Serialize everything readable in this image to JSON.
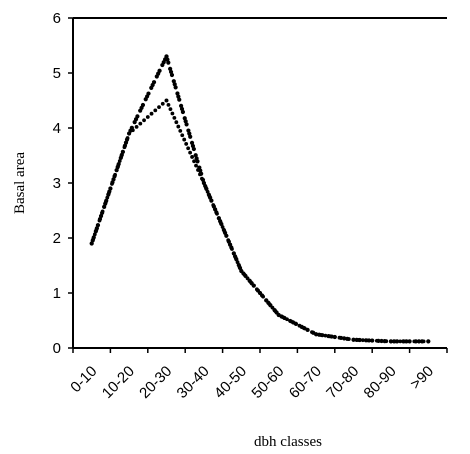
{
  "chart_data": {
    "type": "line",
    "title": "",
    "xlabel": "dbh classes",
    "ylabel": "Basal area",
    "ylim": [
      0,
      6
    ],
    "yticks": [
      "0",
      "1",
      "2",
      "3",
      "4",
      "5",
      "6"
    ],
    "categories": [
      "0-10",
      "10-20",
      "20-30",
      "30-40",
      "40-50",
      "50-60",
      "60-70",
      "70-80",
      "80-90",
      ">90"
    ],
    "grid": false,
    "legend": "none",
    "series": [
      {
        "line_style": "dashed",
        "marker_color": "#000000",
        "values": [
          1.9,
          3.9,
          5.3,
          3.0,
          1.4,
          0.6,
          0.25,
          0.15,
          0.12,
          0.12
        ],
        "peak_between": [
          "20-30",
          "30-40"
        ],
        "peak_value": 5.3,
        "peak_x": 2.5
      },
      {
        "line_style": "dotted",
        "marker_color": "#000000",
        "values": [
          1.9,
          3.9,
          4.5,
          3.0,
          1.4,
          0.6,
          0.25,
          0.15,
          0.12,
          0.12
        ],
        "peak_between": [
          "20-30",
          "30-40"
        ],
        "peak_value": 4.5,
        "peak_x": 2.5
      }
    ]
  }
}
